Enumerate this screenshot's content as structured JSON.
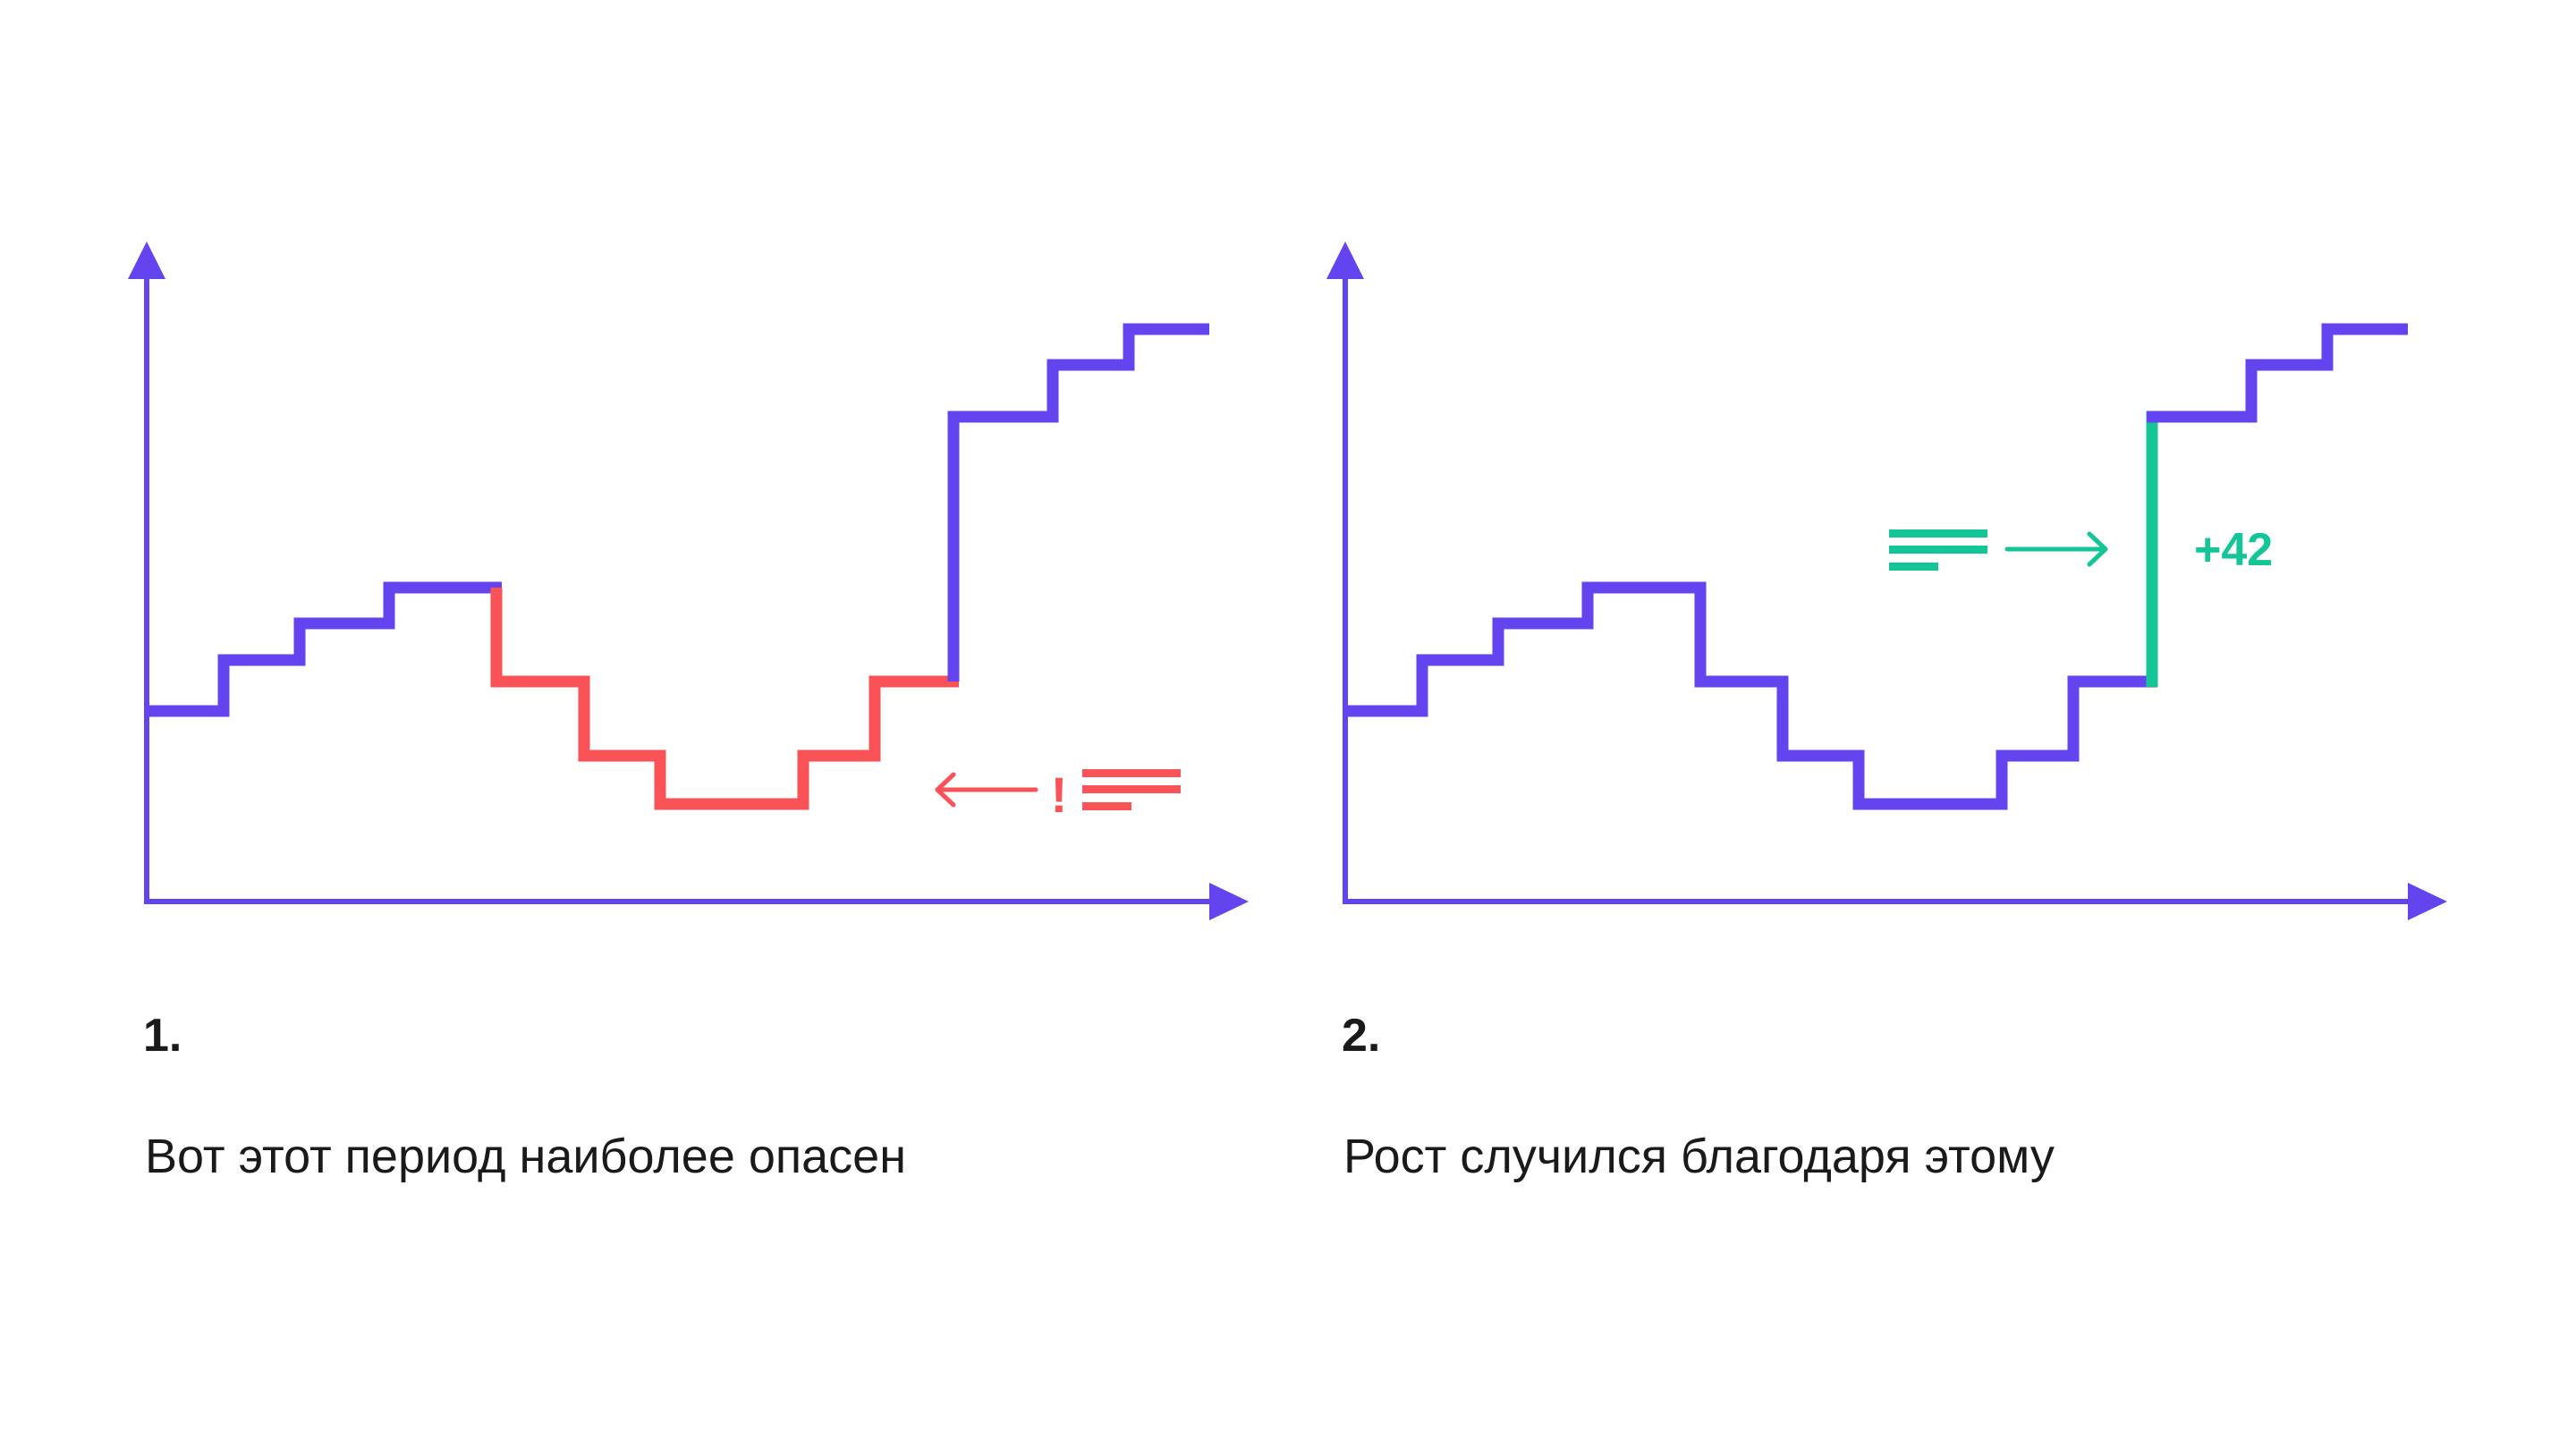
{
  "colors": {
    "main": "#6344ee",
    "danger": "#f95257",
    "growth": "#14c697",
    "text": "#1a1a1a"
  },
  "panels": [
    {
      "number": "1.",
      "caption": "Вот этот период наиболее опасен",
      "annotation": {
        "icon": "left-arrow-icon",
        "mark": "!",
        "lines_icon": "text-lines-icon"
      }
    },
    {
      "number": "2.",
      "caption": "Рост случился благодаря этому",
      "annotation": {
        "icon": "right-arrow-icon",
        "label": "+42",
        "lines_icon": "text-lines-icon"
      }
    }
  ],
  "series": {
    "levels": [
      1.5,
      2.1,
      2.75,
      3.35,
      4.3,
      4.3,
      3.5,
      2.1,
      1.15,
      2.1,
      3.5,
      8.75,
      10.55,
      11.25
    ],
    "highlight_panel1": {
      "from": 5,
      "to": 11,
      "color_key": "danger"
    },
    "highlight_panel2": {
      "step_into": 11,
      "color_key": "growth"
    }
  }
}
